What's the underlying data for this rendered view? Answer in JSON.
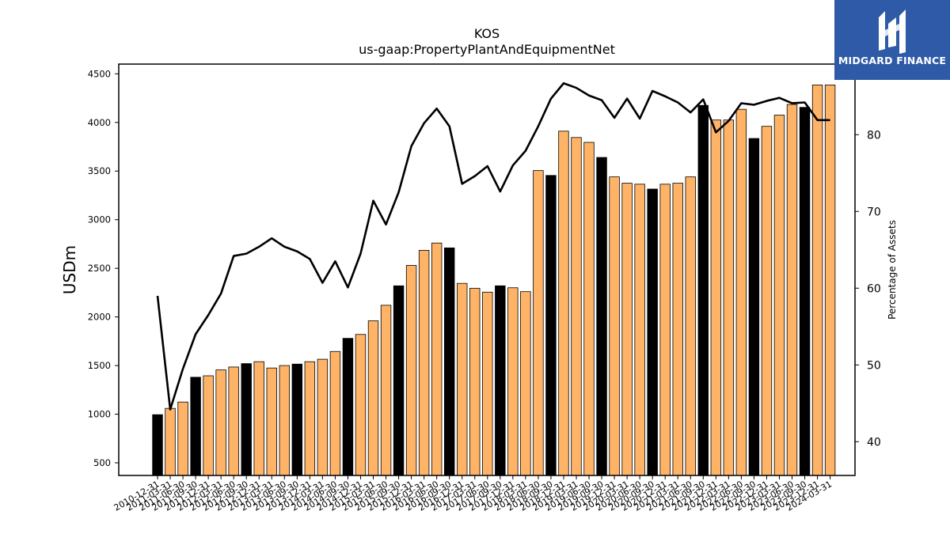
{
  "logo": {
    "text": "MIDGARD FINANCE",
    "icon": "midgard-m-logo-icon",
    "bg_color": "#2f5aa8"
  },
  "chart_data": {
    "type": "bar",
    "title": "KOS",
    "subtitle": "us-gaap:PropertyPlantAndEquipmentNet",
    "ylabel": "USDm",
    "ylabel_right": "Percentage of Assets",
    "ylim": [
      370,
      4600
    ],
    "ylim_right": [
      35.6,
      89.2
    ],
    "yticks": [
      500,
      1000,
      1500,
      2000,
      2500,
      3000,
      3500,
      4000,
      4500
    ],
    "yticks_right": [
      40,
      50,
      60,
      70,
      80
    ],
    "grid": false,
    "colors": {
      "annual": "#000000",
      "quarterly": "#ffb366",
      "line": "#000000"
    },
    "categories": [
      "2010-12-31",
      "2011-03-31",
      "2011-06-30",
      "2011-09-30",
      "2011-12-31",
      "2012-03-31",
      "2012-06-30",
      "2012-09-30",
      "2012-12-31",
      "2013-03-31",
      "2013-06-30",
      "2013-09-30",
      "2013-12-31",
      "2014-03-31",
      "2014-06-30",
      "2014-09-30",
      "2014-12-31",
      "2015-03-31",
      "2015-06-30",
      "2015-09-30",
      "2015-12-31",
      "2016-03-31",
      "2016-06-30",
      "2016-09-30",
      "2016-12-31",
      "2017-03-31",
      "2017-06-30",
      "2017-09-30",
      "2017-12-31",
      "2018-03-31",
      "2018-06-30",
      "2018-09-30",
      "2018-12-31",
      "2019-03-31",
      "2019-06-30",
      "2019-09-30",
      "2019-12-31",
      "2020-03-31",
      "2020-06-30",
      "2020-09-30",
      "2020-12-31",
      "2021-03-31",
      "2021-06-30",
      "2021-09-30",
      "2021-12-31",
      "2022-03-31",
      "2022-06-30",
      "2022-09-30",
      "2022-12-31",
      "2023-03-31",
      "2023-06-30",
      "2023-09-30",
      "2023-12-31",
      "2024-03-31"
    ],
    "period_type": [
      "annual",
      "quarterly",
      "quarterly",
      "annual",
      "quarterly",
      "quarterly",
      "quarterly",
      "annual",
      "quarterly",
      "quarterly",
      "quarterly",
      "annual",
      "quarterly",
      "quarterly",
      "quarterly",
      "annual",
      "quarterly",
      "quarterly",
      "quarterly",
      "annual",
      "quarterly",
      "quarterly",
      "quarterly",
      "annual",
      "quarterly",
      "quarterly",
      "quarterly",
      "annual",
      "quarterly",
      "quarterly",
      "quarterly",
      "annual",
      "quarterly",
      "quarterly",
      "quarterly",
      "annual",
      "quarterly",
      "quarterly",
      "quarterly",
      "annual",
      "quarterly",
      "quarterly",
      "quarterly",
      "annual",
      "quarterly",
      "quarterly",
      "quarterly",
      "annual",
      "quarterly",
      "quarterly",
      "quarterly",
      "annual",
      "quarterly",
      "quarterly"
    ],
    "series": [
      {
        "axis": "left",
        "type": "bar",
        "values": [
          995,
          1060,
          1125,
          1380,
          1395,
          1455,
          1485,
          1520,
          1540,
          1475,
          1500,
          1515,
          1540,
          1565,
          1645,
          1780,
          1820,
          1960,
          2120,
          2320,
          2530,
          2685,
          2760,
          2710,
          2345,
          2295,
          2255,
          2320,
          2300,
          2260,
          3505,
          3455,
          3910,
          3845,
          3795,
          3640,
          3440,
          3375,
          3365,
          3315,
          3365,
          3375,
          3440,
          4175,
          4025,
          4025,
          4135,
          3835,
          3960,
          4075,
          4185,
          4155,
          4385,
          4385
        ]
      },
      {
        "axis": "right",
        "type": "line",
        "values": [
          59,
          44.2,
          49.5,
          54,
          56.5,
          59.3,
          64.2,
          64.5,
          65.4,
          66.5,
          65.4,
          64.8,
          63.8,
          60.7,
          63.5,
          60.1,
          64.5,
          71.4,
          68.3,
          72.5,
          78.5,
          81.5,
          83.4,
          81.1,
          73.6,
          74.6,
          75.9,
          72.6,
          76,
          77.9,
          81.1,
          84.7,
          86.7,
          86.1,
          85.1,
          84.5,
          82.2,
          84.7,
          82.1,
          85.7,
          85,
          84.2,
          82.9,
          84.6,
          80.3,
          81.8,
          84.1,
          83.9,
          84.4,
          84.8,
          84.1,
          84.2,
          81.9,
          81.9
        ]
      }
    ]
  }
}
